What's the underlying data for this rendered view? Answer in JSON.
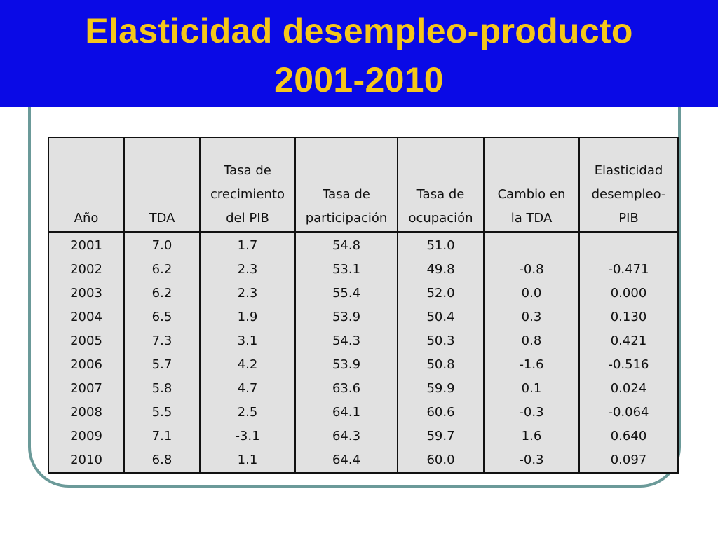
{
  "title": {
    "line1": "Elasticidad desempleo-producto",
    "line2": "2001-2010"
  },
  "colors": {
    "title_bar": "#0a0ae6",
    "title_text": "#f5c71a",
    "frame": "#6b9a99",
    "table_bg": "#e1e1e1"
  },
  "table": {
    "headers": [
      [
        "Año"
      ],
      [
        "TDA"
      ],
      [
        "Tasa de",
        "crecimiento",
        "del PIB"
      ],
      [
        "Tasa de",
        "participación"
      ],
      [
        "Tasa de",
        "ocupación"
      ],
      [
        "Cambio en",
        "la TDA"
      ],
      [
        "Elasticidad",
        "desempleo-",
        "PIB"
      ]
    ],
    "rows": [
      [
        "2001",
        "7.0",
        "1.7",
        "54.8",
        "51.0",
        "",
        ""
      ],
      [
        "2002",
        "6.2",
        "2.3",
        "53.1",
        "49.8",
        "-0.8",
        "-0.471"
      ],
      [
        "2003",
        "6.2",
        "2.3",
        "55.4",
        "52.0",
        "0.0",
        "0.000"
      ],
      [
        "2004",
        "6.5",
        "1.9",
        "53.9",
        "50.4",
        "0.3",
        "0.130"
      ],
      [
        "2005",
        "7.3",
        "3.1",
        "54.3",
        "50.3",
        "0.8",
        "0.421"
      ],
      [
        "2006",
        "5.7",
        "4.2",
        "53.9",
        "50.8",
        "-1.6",
        "-0.516"
      ],
      [
        "2007",
        "5.8",
        "4.7",
        "63.6",
        "59.9",
        "0.1",
        "0.024"
      ],
      [
        "2008",
        "5.5",
        "2.5",
        "64.1",
        "60.6",
        "-0.3",
        "-0.064"
      ],
      [
        "2009",
        "7.1",
        "-3.1",
        "64.3",
        "59.7",
        "1.6",
        "0.640"
      ],
      [
        "2010",
        "6.8",
        "1.1",
        "64.4",
        "60.0",
        "-0.3",
        "0.097"
      ]
    ]
  }
}
